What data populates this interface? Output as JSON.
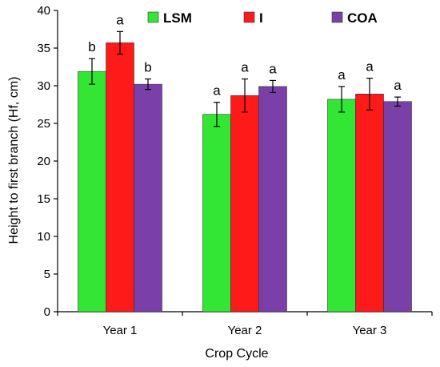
{
  "chart_data": {
    "type": "bar",
    "title": "",
    "xlabel": "Crop Cycle",
    "ylabel": "Height to first branch (Hf, cm)",
    "categories": [
      "Year 1",
      "Year 2",
      "Year 3"
    ],
    "ylim": [
      0,
      40
    ],
    "yticks": [
      "0",
      "5",
      "10",
      "15",
      "20",
      "25",
      "30",
      "35",
      "40"
    ],
    "legend_position": "top",
    "grid": false,
    "series": [
      {
        "name": "LSM",
        "color": "#33e633",
        "values": [
          31.9,
          26.2,
          28.2
        ],
        "errors": [
          1.7,
          1.6,
          1.7
        ],
        "letters": [
          "b",
          "a",
          "a"
        ]
      },
      {
        "name": "I",
        "color": "#ff1a1a",
        "values": [
          35.7,
          28.7,
          28.9
        ],
        "errors": [
          1.5,
          2.2,
          2.1
        ],
        "letters": [
          "a",
          "a",
          "a"
        ]
      },
      {
        "name": "COA",
        "color": "#7a3fa8",
        "values": [
          30.2,
          29.9,
          27.9
        ],
        "errors": [
          0.7,
          0.8,
          0.6
        ],
        "letters": [
          "b",
          "a",
          "a"
        ]
      }
    ]
  }
}
